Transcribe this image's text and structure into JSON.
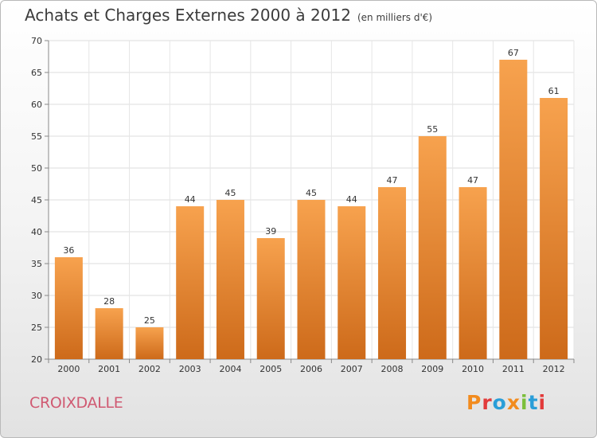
{
  "title": "Achats et Charges Externes 2000 à 2012",
  "subtitle": "(en milliers d'€)",
  "town": "CROIXDALLE",
  "logo": "Proxiti",
  "colors": {
    "bar_top": "#f7a24e",
    "bar_bottom": "#cd6a1a",
    "town": "#d05a72",
    "logo": [
      "#f28b1e",
      "#e23b3b",
      "#2a9ed8",
      "#f28b1e",
      "#7bbf3a",
      "#2a9ed8",
      "#e23b3b"
    ]
  },
  "chart_data": {
    "type": "bar",
    "categories": [
      "2000",
      "2001",
      "2002",
      "2003",
      "2004",
      "2005",
      "2006",
      "2007",
      "2008",
      "2009",
      "2010",
      "2011",
      "2012"
    ],
    "values": [
      36,
      28,
      25,
      44,
      45,
      39,
      45,
      44,
      47,
      55,
      47,
      67,
      61
    ],
    "ylim": [
      20,
      70
    ],
    "yticks": [
      20,
      25,
      30,
      35,
      40,
      45,
      50,
      55,
      60,
      65,
      70
    ],
    "grid": true
  }
}
